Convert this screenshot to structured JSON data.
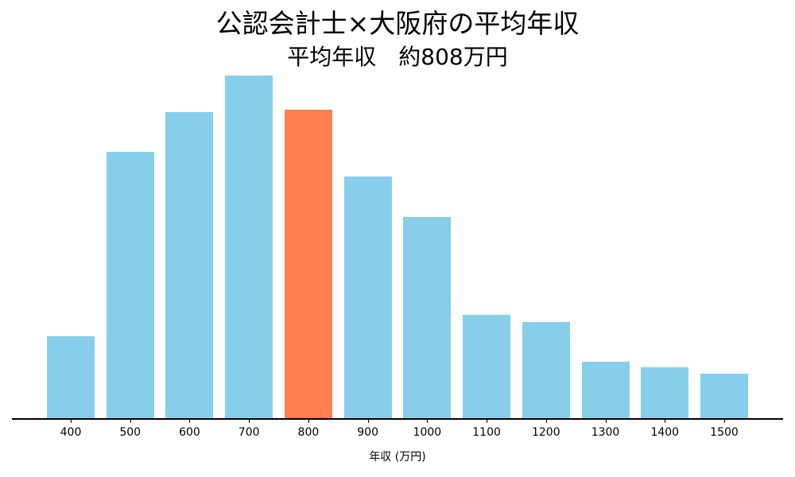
{
  "chart_data": {
    "type": "bar",
    "title": "公認会計士×大阪府の平均年収",
    "subtitle": "平均年収　約808万円",
    "xlabel": "年収 (万円)",
    "ylabel": "",
    "categories": [
      "400",
      "500",
      "600",
      "700",
      "800",
      "900",
      "1000",
      "1100",
      "1200",
      "1300",
      "1400",
      "1500"
    ],
    "values": [
      104,
      336,
      386,
      432,
      389,
      305,
      254,
      131,
      122,
      72,
      65,
      57
    ],
    "value_note": "relative bar heights (no y-axis shown)",
    "highlight_category": "800",
    "colors": {
      "default": "#87ceeb",
      "highlight": "#ff7f50"
    },
    "grid": false,
    "legend": null
  }
}
